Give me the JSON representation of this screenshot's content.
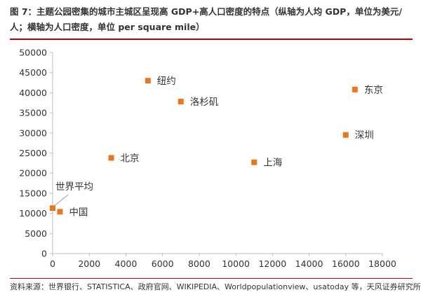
{
  "title": "图 7：主题公园密集的城市主城区呈现高 GDP+高人口密度的特点（纵轴为人均 GDP，单位为美元/人；横轴为人口密度，单位 per square mile）",
  "source": "资料来源：世界银行、STATISTICA、政府官网、WIKIPEDIA、Worldpopulationview、usatoday 等，天风证券研究所",
  "colors": {
    "marker": "#e87722",
    "axis": "#bfbfbf",
    "rule": "#c00000"
  },
  "chart_data": {
    "type": "scatter",
    "title": "",
    "xlabel": "",
    "ylabel": "",
    "xlim": [
      0,
      18000
    ],
    "ylim": [
      0,
      50000
    ],
    "xticks": [
      "0",
      "2000",
      "4000",
      "6000",
      "8000",
      "10000",
      "12000",
      "14000",
      "16000",
      "18000"
    ],
    "yticks": [
      "0",
      "5000",
      "10000",
      "15000",
      "20000",
      "25000",
      "30000",
      "35000",
      "40000",
      "45000",
      "50000"
    ],
    "grid": false,
    "points": [
      {
        "label": "纽约",
        "x": 5200,
        "y": 43000
      },
      {
        "label": "东京",
        "x": 16500,
        "y": 40800
      },
      {
        "label": "洛杉矶",
        "x": 7000,
        "y": 37800
      },
      {
        "label": "深圳",
        "x": 16000,
        "y": 29500
      },
      {
        "label": "北京",
        "x": 3200,
        "y": 23800
      },
      {
        "label": "上海",
        "x": 11000,
        "y": 22700
      },
      {
        "label": "世界平均",
        "x": 0,
        "y": 11300
      },
      {
        "label": "中国",
        "x": 400,
        "y": 10400
      }
    ]
  }
}
